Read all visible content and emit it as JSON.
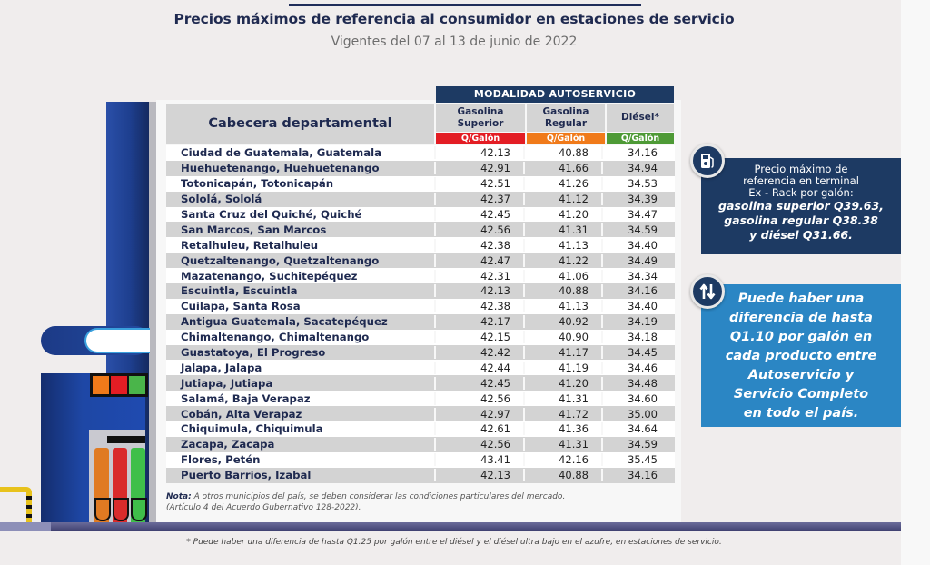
{
  "header": {
    "title": "Precios máximos de referencia al consumidor en estaciones de servicio",
    "subtitle": "Vigentes del 07 al 13 de junio de 2022"
  },
  "table": {
    "group_header": "MODALIDAD AUTOSERVICIO",
    "name_header": "Cabecera departamental",
    "columns": [
      {
        "line1": "Gasolina",
        "line2": "Superior",
        "unit": "Q/Galón",
        "color": "#e31d24"
      },
      {
        "line1": "Gasolina",
        "line2": "Regular",
        "unit": "Q/Galón",
        "color": "#f07a1a"
      },
      {
        "line1": "Diésel*",
        "line2": "",
        "unit": "Q/Galón",
        "color": "#4e9a36"
      }
    ],
    "rows": [
      {
        "name": "Ciudad de Guatemala, Guatemala",
        "superior": "42.13",
        "regular": "40.88",
        "diesel": "34.16"
      },
      {
        "name": "Huehuetenango, Huehuetenango",
        "superior": "42.91",
        "regular": "41.66",
        "diesel": "34.94"
      },
      {
        "name": "Totonicapán, Totonicapán",
        "superior": "42.51",
        "regular": "41.26",
        "diesel": "34.53"
      },
      {
        "name": "Sololá, Sololá",
        "superior": "42.37",
        "regular": "41.12",
        "diesel": "34.39"
      },
      {
        "name": "Santa Cruz del Quiché, Quiché",
        "superior": "42.45",
        "regular": "41.20",
        "diesel": "34.47"
      },
      {
        "name": "San Marcos, San Marcos",
        "superior": "42.56",
        "regular": "41.31",
        "diesel": "34.59"
      },
      {
        "name": "Retalhuleu, Retalhuleu",
        "superior": "42.38",
        "regular": "41.13",
        "diesel": "34.40"
      },
      {
        "name": "Quetzaltenango, Quetzaltenango",
        "superior": "42.47",
        "regular": "41.22",
        "diesel": "34.49"
      },
      {
        "name": "Mazatenango, Suchitepéquez",
        "superior": "42.31",
        "regular": "41.06",
        "diesel": "34.34"
      },
      {
        "name": "Escuintla, Escuintla",
        "superior": "42.13",
        "regular": "40.88",
        "diesel": "34.16"
      },
      {
        "name": "Cuilapa, Santa Rosa",
        "superior": "42.38",
        "regular": "41.13",
        "diesel": "34.40"
      },
      {
        "name": "Antigua Guatemala, Sacatepéquez",
        "superior": "42.17",
        "regular": "40.92",
        "diesel": "34.19"
      },
      {
        "name": "Chimaltenango, Chimaltenango",
        "superior": "42.15",
        "regular": "40.90",
        "diesel": "34.18"
      },
      {
        "name": "Guastatoya, El Progreso",
        "superior": "42.42",
        "regular": "41.17",
        "diesel": "34.45"
      },
      {
        "name": "Jalapa, Jalapa",
        "superior": "42.44",
        "regular": "41.19",
        "diesel": "34.46"
      },
      {
        "name": "Jutiapa, Jutiapa",
        "superior": "42.45",
        "regular": "41.20",
        "diesel": "34.48"
      },
      {
        "name": "Salamá, Baja Verapaz",
        "superior": "42.56",
        "regular": "41.31",
        "diesel": "34.60"
      },
      {
        "name": "Cobán, Alta Verapaz",
        "superior": "42.97",
        "regular": "41.72",
        "diesel": "35.00"
      },
      {
        "name": "Chiquimula, Chiquimula",
        "superior": "42.61",
        "regular": "41.36",
        "diesel": "34.64"
      },
      {
        "name": "Zacapa, Zacapa",
        "superior": "42.56",
        "regular": "41.31",
        "diesel": "34.59"
      },
      {
        "name": "Flores, Petén",
        "superior": "43.41",
        "regular": "42.16",
        "diesel": "35.45"
      },
      {
        "name": "Puerto Barrios, Izabal",
        "superior": "42.13",
        "regular": "40.88",
        "diesel": "34.16"
      }
    ]
  },
  "note": {
    "label": "Nota:",
    "text": " A otros municipios del país, se deben considerar las condiciones particulares del mercado.",
    "line2": "(Artículo 4 del Acuerdo Gubernativo 128-2022)."
  },
  "footnote": "* Puede haber una diferencia de hasta Q1.25 por galón entre el diésel y el diésel ultra bajo en el azufre, en estaciones de servicio.",
  "terminal_box": {
    "icon": "fuel-pump-icon",
    "line1": "Precio máximo  de",
    "line2": "referencia en terminal",
    "line3": "Ex - Rack por galón:",
    "line4": "gasolina superior Q39.63,",
    "line5": "gasolina regular Q38.38",
    "line6": "y diésel Q31.66."
  },
  "difference_box": {
    "icon": "up-down-arrows-icon",
    "lines": [
      "Puede haber una",
      "diferencia de hasta",
      "Q1.10 por galón en",
      "cada producto entre",
      "Autoservicio y",
      "Servicio Completo",
      "en todo el país."
    ]
  },
  "colors": {
    "navy": "#1d3a63",
    "blue_box": "#2b86c4",
    "superior": "#e31d24",
    "regular": "#f07a1a",
    "diesel": "#4e9a36"
  }
}
